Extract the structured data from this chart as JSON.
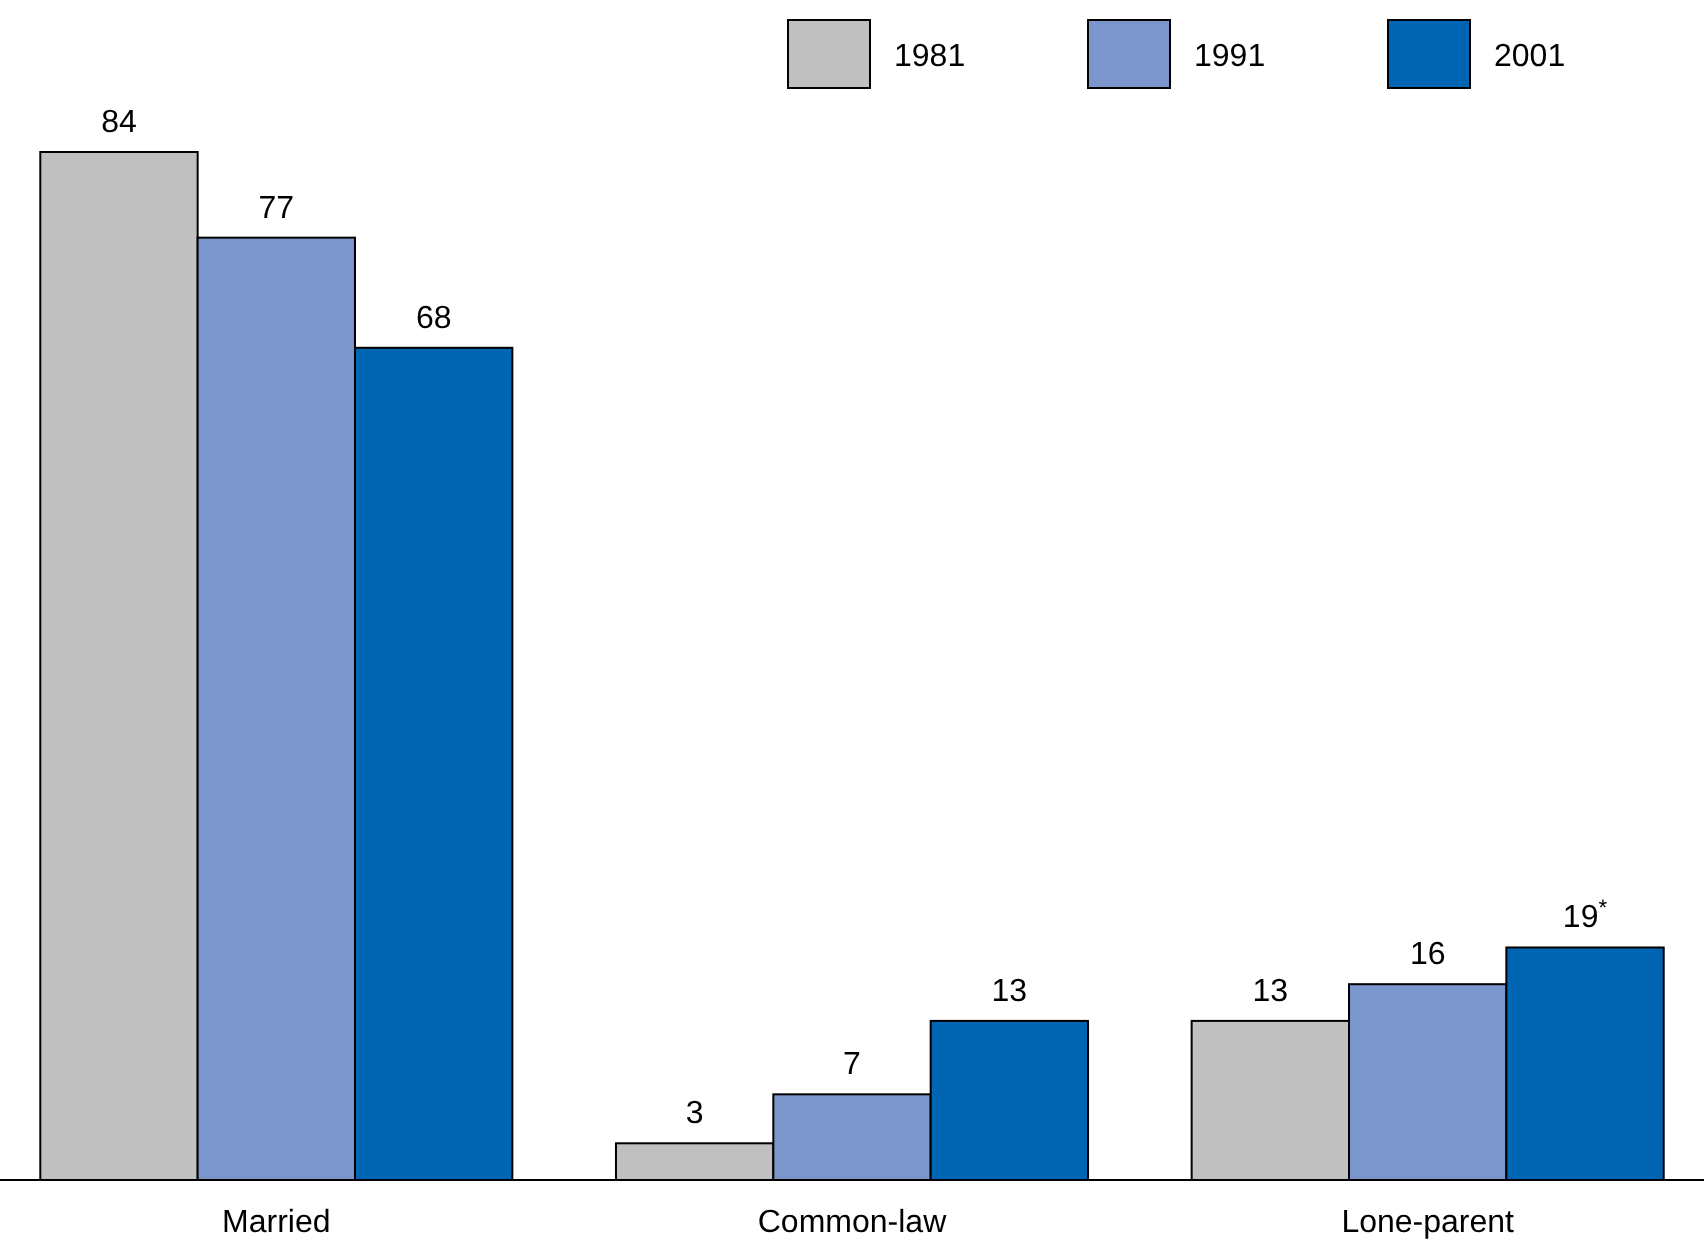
{
  "chart_data": {
    "type": "bar",
    "categories": [
      "Married",
      "Common-law",
      "Lone-parent"
    ],
    "series": [
      {
        "name": "1981",
        "color": "#c0c0c0",
        "values": [
          84,
          3,
          13
        ],
        "value_labels": [
          "84",
          "3",
          "13"
        ]
      },
      {
        "name": "1991",
        "color": "#7b96cc",
        "values": [
          77,
          7,
          16
        ],
        "value_labels": [
          "77",
          "7",
          "16"
        ]
      },
      {
        "name": "2001",
        "color": "#0066b3",
        "values": [
          68,
          13,
          19
        ],
        "value_labels": [
          "68",
          "13",
          "19$^{*}$"
        ]
      }
    ],
    "legend": "top right"
  }
}
